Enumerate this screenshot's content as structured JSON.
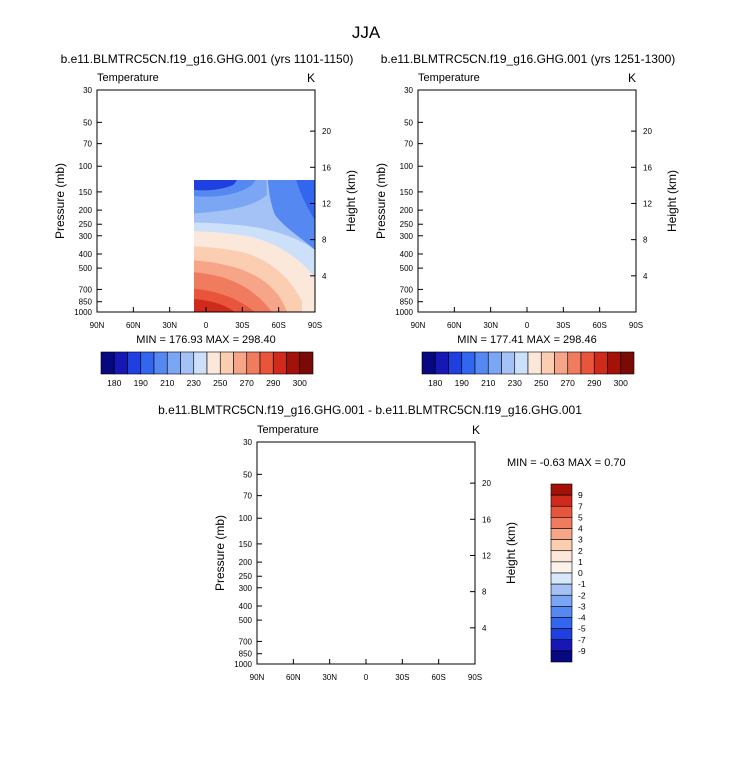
{
  "figure": {
    "title": "JJA"
  },
  "chart_data": [
    {
      "type": "heatmap",
      "title": "b.e11.BLMTRC5CN.f19_g16.GHG.001 (yrs 1101-1150)",
      "left_label": "Temperature",
      "right_label": "K",
      "ylabel": "Pressure (mb)",
      "ylabel_right": "Height (km)",
      "x_ticks": [
        "90N",
        "60N",
        "30N",
        "0",
        "30S",
        "60S",
        "90S"
      ],
      "y_ticks": [
        "30",
        "50",
        "70",
        "100",
        "150",
        "200",
        "250",
        "300",
        "400",
        "500",
        "700",
        "850",
        "1000"
      ],
      "height_ticks": [
        "20",
        "16",
        "12",
        "8",
        "4"
      ],
      "stats": "MIN = 176.93  MAX = 298.40",
      "min": 176.93,
      "max": 298.4,
      "colorbar": {
        "labels": [
          "180",
          "190",
          "210",
          "230",
          "250",
          "270",
          "290",
          "300"
        ],
        "colors": [
          "#07077f",
          "#1717b5",
          "#1f3fe0",
          "#3366ee",
          "#5588f0",
          "#7aa6f4",
          "#a4c2f6",
          "#cde0fa",
          "#fce8da",
          "#fbcdb1",
          "#f6a588",
          "#f07b5f",
          "#e8553a",
          "#cf2a1b",
          "#a31109",
          "#7a0a05"
        ]
      }
    },
    {
      "type": "heatmap",
      "title": "b.e11.BLMTRC5CN.f19_g16.GHG.001 (yrs 1251-1300)",
      "left_label": "Temperature",
      "right_label": "K",
      "ylabel": "Pressure (mb)",
      "ylabel_right": "Height (km)",
      "x_ticks": [
        "90N",
        "60N",
        "30N",
        "0",
        "30S",
        "60S",
        "90S"
      ],
      "y_ticks": [
        "30",
        "50",
        "70",
        "100",
        "150",
        "200",
        "250",
        "300",
        "400",
        "500",
        "700",
        "850",
        "1000"
      ],
      "height_ticks": [
        "20",
        "16",
        "12",
        "8",
        "4"
      ],
      "stats": "MIN = 177.41  MAX = 298.46",
      "min": 177.41,
      "max": 298.46,
      "colorbar": {
        "labels": [
          "180",
          "190",
          "210",
          "230",
          "250",
          "270",
          "290",
          "300"
        ],
        "colors": [
          "#07077f",
          "#1717b5",
          "#1f3fe0",
          "#3366ee",
          "#5588f0",
          "#7aa6f4",
          "#a4c2f6",
          "#cde0fa",
          "#fce8da",
          "#fbcdb1",
          "#f6a588",
          "#f07b5f",
          "#e8553a",
          "#cf2a1b",
          "#a31109",
          "#7a0a05"
        ]
      }
    },
    {
      "type": "heatmap",
      "title": "b.e11.BLMTRC5CN.f19_g16.GHG.001 - b.e11.BLMTRC5CN.f19_g16.GHG.001",
      "left_label": "Temperature",
      "right_label": "K",
      "ylabel": "Pressure (mb)",
      "ylabel_right": "Height (km)",
      "x_ticks": [
        "90N",
        "60N",
        "30N",
        "0",
        "30S",
        "60S",
        "90S"
      ],
      "y_ticks": [
        "30",
        "50",
        "70",
        "100",
        "150",
        "200",
        "250",
        "300",
        "400",
        "500",
        "700",
        "850",
        "1000"
      ],
      "height_ticks": [
        "20",
        "16",
        "12",
        "8",
        "4"
      ],
      "stats": "MIN = -0.63  MAX =  0.70",
      "min": -0.63,
      "max": 0.7,
      "colorbar": {
        "labels": [
          "9",
          "7",
          "5",
          "4",
          "3",
          "2",
          "1",
          "0",
          "-1",
          "-2",
          "-3",
          "-4",
          "-5",
          "-7",
          "-9"
        ],
        "colors": [
          "#a31109",
          "#cf2a1b",
          "#e8553a",
          "#f07b5f",
          "#f6a588",
          "#fbcdb1",
          "#fce8da",
          "#fdf2ea",
          "#d8e8fb",
          "#a4c2f6",
          "#7aa6f4",
          "#5588f0",
          "#3366ee",
          "#1f3fe0",
          "#1717b5",
          "#07077f"
        ]
      }
    }
  ]
}
